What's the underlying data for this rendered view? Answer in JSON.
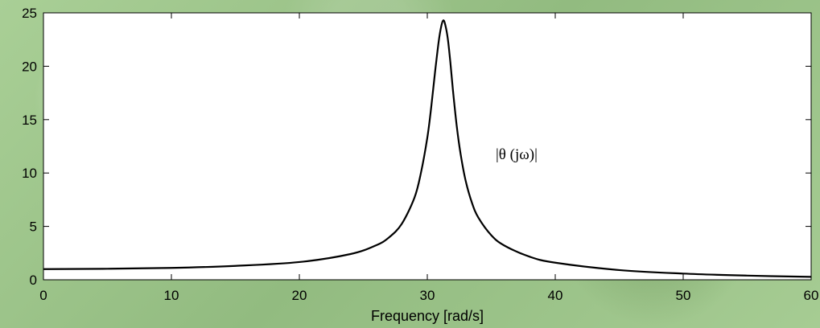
{
  "chart_data": {
    "type": "line",
    "title": "",
    "xlabel": "Frequency [rad/s]",
    "ylabel": "",
    "xlim": [
      0,
      60
    ],
    "ylim": [
      0,
      25
    ],
    "xticks": [
      0,
      10,
      20,
      30,
      40,
      50,
      60
    ],
    "yticks": [
      0,
      5,
      10,
      15,
      20,
      25
    ],
    "grid": false,
    "annotation": "|θ (jω)|",
    "series": [
      {
        "x": [
          0,
          5,
          10,
          15,
          20,
          24,
          26,
          27,
          28,
          29,
          29.5,
          30,
          30.3,
          30.6,
          30.9,
          31.1,
          31.25,
          31.4,
          31.6,
          31.8,
          32.0,
          32.3,
          32.6,
          33,
          33.5,
          34,
          35,
          36,
          38,
          40,
          45,
          50,
          55,
          60
        ],
        "values": [
          1.0,
          1.03,
          1.11,
          1.3,
          1.66,
          2.41,
          3.23,
          3.96,
          5.23,
          7.7,
          10.0,
          13.3,
          16.1,
          19.4,
          22.4,
          23.8,
          24.3,
          23.9,
          22.6,
          20.4,
          17.8,
          14.4,
          11.8,
          9.26,
          7.17,
          5.8,
          4.17,
          3.22,
          2.16,
          1.6,
          0.91,
          0.58,
          0.39,
          0.27
        ]
      }
    ]
  }
}
